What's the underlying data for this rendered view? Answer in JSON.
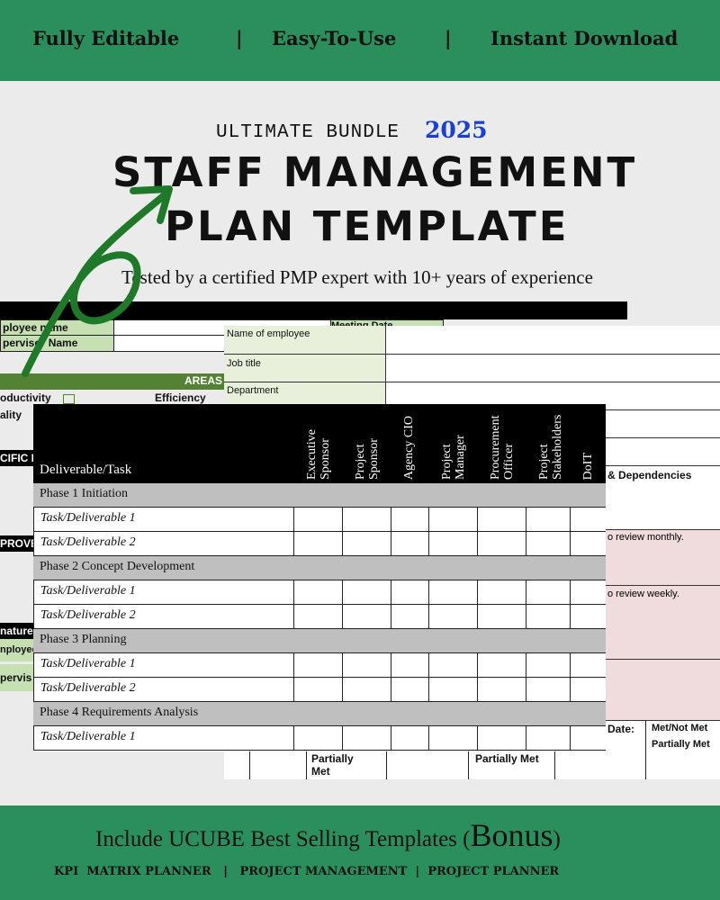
{
  "banner": {
    "items": [
      "Fully Editable",
      "|",
      "Easy-To-Use",
      "|",
      "Instant Download"
    ]
  },
  "hero": {
    "bundle": "ULTIMATE BUNDLE",
    "year": "2025",
    "title_line1": "STAFF MANAGEMENT",
    "title_line2": "PLAN TEMPLATE",
    "subtitle": "Tested by a certified PMP expert with 10+ years of experience"
  },
  "back_sheet": {
    "employee_name": "ployee name",
    "supervisor_name": "pervisor Name",
    "meeting_date": "Meeting Date",
    "areas": "AREAS",
    "productivity": "oductivity",
    "efficiency": "Efficiency",
    "quality": "ality",
    "specific": "CIFIC I",
    "improve": "PROVE",
    "signature": "nature",
    "employee": "nployee",
    "supervisor": "pervis"
  },
  "middle_sheet": {
    "rows": [
      "Name of employee",
      "Job title",
      "Department"
    ],
    "dependencies": "& Dependencies",
    "review_monthly": "o review monthly.",
    "review_weekly": "o review weekly.",
    "date": "Date:",
    "met_not_met": "Met/Not Met",
    "partially_met_right": "Partially Met",
    "partially_met_1": "Partially Met",
    "partially_met_2": "Partially Met"
  },
  "front_table": {
    "first_header": "Deliverable/Task",
    "headers": [
      "Executive Sponsor",
      "Project Sponsor",
      "Agency CIO",
      "Project Manager",
      "Procurement Officer",
      "Project Stakeholders",
      "DoIT"
    ],
    "rows": [
      {
        "type": "phase",
        "label": "Phase 1 Initiation"
      },
      {
        "type": "task",
        "label": "Task/Deliverable 1"
      },
      {
        "type": "task",
        "label": "Task/Deliverable 2"
      },
      {
        "type": "phase",
        "label": "Phase 2 Concept Development"
      },
      {
        "type": "task",
        "label": "Task/Deliverable 1"
      },
      {
        "type": "task",
        "label": "Task/Deliverable 2"
      },
      {
        "type": "phase",
        "label": "Phase 3 Planning"
      },
      {
        "type": "task",
        "label": "Task/Deliverable 1"
      },
      {
        "type": "task",
        "label": "Task/Deliverable 2"
      },
      {
        "type": "phase",
        "label": "Phase 4 Requirements Analysis"
      },
      {
        "type": "task",
        "label": "Task/Deliverable 1"
      }
    ]
  },
  "footer": {
    "include": "Include UCUBE Best Selling Templates (",
    "bonus": "Bonus",
    "close": ")",
    "items": [
      "KPI  MATRIX PLANNER",
      "|",
      "PROJECT MANAGEMENT",
      "|",
      "PROJECT PLANNER"
    ]
  },
  "colors": {
    "brand_green": "#2b8f5d",
    "year_blue": "#1a3fd8",
    "arrow_green": "#1e7a28"
  }
}
